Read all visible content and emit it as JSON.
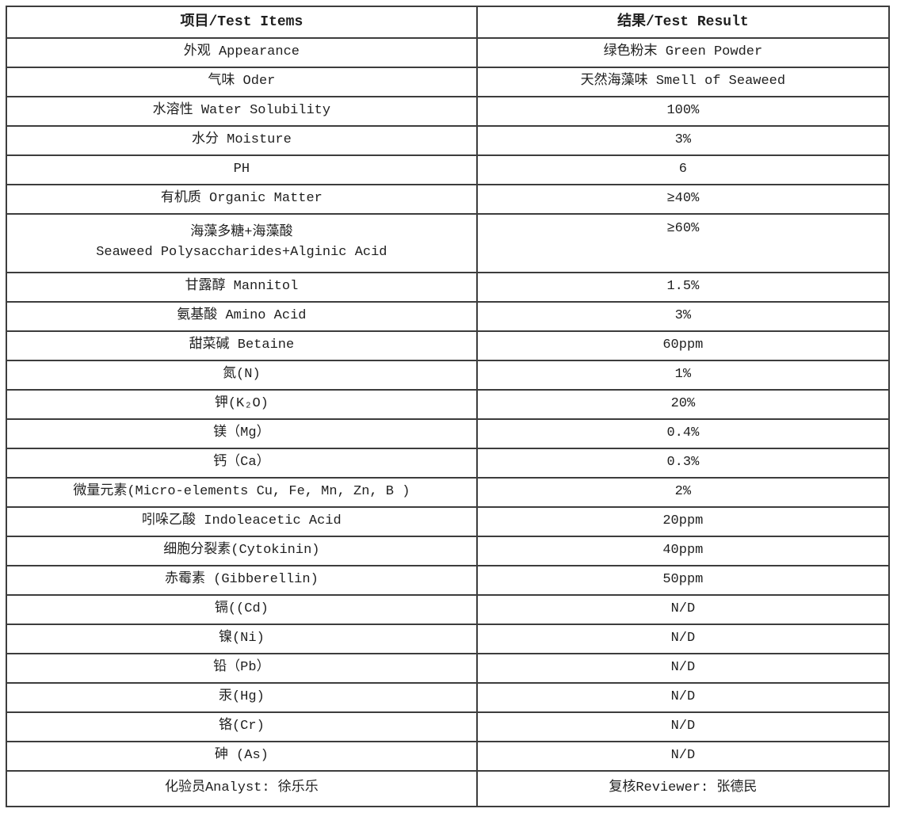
{
  "table": {
    "border_color": "#3d3d3d",
    "text_color": "#1f1f1f",
    "columns": [
      {
        "label": "项目/Test Items"
      },
      {
        "label": "结果/Test Result"
      }
    ],
    "rows": [
      {
        "item": "外观 Appearance",
        "result": "绿色粉末 Green Powder"
      },
      {
        "item": "气味 Oder",
        "result": "天然海藻味 Smell of Seaweed"
      },
      {
        "item": "水溶性 Water Solubility",
        "result": "100%"
      },
      {
        "item": "水分 Moisture",
        "result": "3%"
      },
      {
        "item": "PH",
        "result": "6"
      },
      {
        "item": "有机质 Organic Matter",
        "result": "≥40%"
      },
      {
        "item": "海藻多糖+海藻酸\nSeaweed Polysaccharides+Alginic Acid",
        "result": "≥60%",
        "tall": true
      },
      {
        "item": "甘露醇 Mannitol",
        "result": "1.5%"
      },
      {
        "item": "氨基酸 Amino Acid",
        "result": "3%"
      },
      {
        "item": "甜菜碱 Betaine",
        "result": "60ppm"
      },
      {
        "item": "氮(N)",
        "result": "1%"
      },
      {
        "item": "钾(K₂O)",
        "result": "20%"
      },
      {
        "item": "镁（Mg）",
        "result": "0.4%"
      },
      {
        "item": "钙（Ca）",
        "result": "0.3%"
      },
      {
        "item": "微量元素(Micro-elements Cu, Fe, Mn, Zn, B )",
        "result": "2%"
      },
      {
        "item": "吲哚乙酸 Indoleacetic Acid",
        "result": "20ppm"
      },
      {
        "item": "细胞分裂素(Cytokinin)",
        "result": "40ppm"
      },
      {
        "item": "赤霉素 (Gibberellin)",
        "result": "50ppm"
      },
      {
        "item": "镉((Cd)",
        "result": "N/D"
      },
      {
        "item": "镍(Ni)",
        "result": "N/D"
      },
      {
        "item": "铅（Pb）",
        "result": "N/D"
      },
      {
        "item": "汞(Hg)",
        "result": "N/D"
      },
      {
        "item": "铬(Cr)",
        "result": "N/D"
      },
      {
        "item": "砷 (As)",
        "result": "N/D"
      },
      {
        "item": "化验员Analyst: 徐乐乐",
        "result": "复核Reviewer: 张德民",
        "footer": true
      }
    ]
  }
}
